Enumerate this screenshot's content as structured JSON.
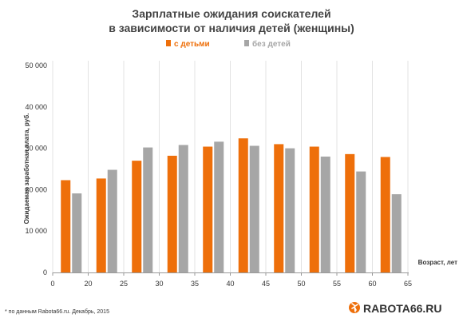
{
  "chart_data": {
    "type": "bar",
    "title": "Зарплатные ожидания соискателей",
    "subtitle": "в зависимости от наличия детей (женщины)",
    "xlabel": "Возраст, лет",
    "ylabel": "Ожидаемая заработная плата, руб.",
    "ylim": [
      0,
      50000
    ],
    "y_ticks": [
      "0",
      "10 000",
      "20 000",
      "30 000",
      "40 000",
      "50 000"
    ],
    "x_ticks": [
      "0",
      "20",
      "25",
      "30",
      "35",
      "40",
      "45",
      "50",
      "55",
      "60",
      "65"
    ],
    "grid": "vertical",
    "legend_position": "top-center",
    "series": [
      {
        "name": "с детьми",
        "color": "#ee6f0a",
        "values": [
          22300,
          22700,
          27000,
          28200,
          30400,
          32400,
          31000,
          30400,
          28600,
          27900
        ]
      },
      {
        "name": "без детей",
        "color": "#a6a6a6",
        "values": [
          19100,
          24800,
          30200,
          30800,
          31600,
          30600,
          30000,
          28000,
          24400,
          18900
        ]
      }
    ]
  },
  "footnote": "* по данным Rabota66.ru. Декабрь, 2015",
  "logo": {
    "text": "RABOTA66.RU",
    "accent_color": "#ee6f0a"
  }
}
